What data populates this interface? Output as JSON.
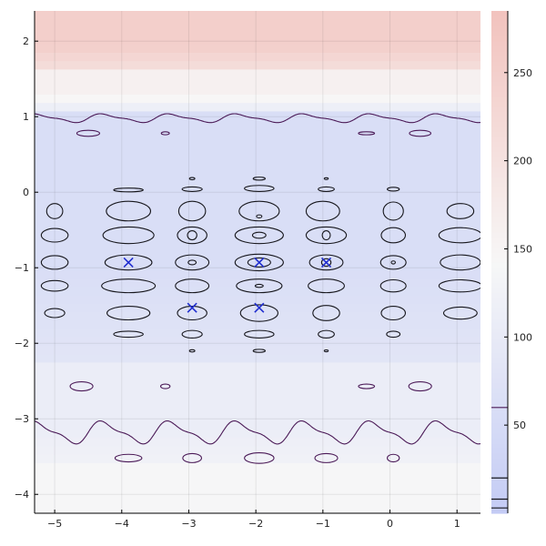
{
  "chart_data": {
    "type": "heatmap",
    "title": "",
    "xlabel": "",
    "ylabel": "",
    "xlim": [
      -5.3,
      1.35
    ],
    "ylim": [
      -4.25,
      2.4
    ],
    "x_ticks": [
      -5,
      -4,
      -3,
      -2,
      -1,
      0,
      1
    ],
    "y_ticks": [
      2,
      1,
      0,
      -1,
      -2,
      -3,
      -4
    ],
    "x_tick_labels": [
      "−5",
      "−4",
      "−3",
      "−2",
      "−1",
      "0",
      "1"
    ],
    "y_tick_labels": [
      "2",
      "1",
      "0",
      "−1",
      "−2",
      "−3",
      "−4"
    ],
    "grid": true,
    "colorbar": {
      "min": 0,
      "max": 285,
      "ticks": [
        50,
        100,
        150,
        200,
        250
      ],
      "tick_labels": [
        "50",
        "100",
        "150",
        "200",
        "250"
      ],
      "colors": {
        "low": "#c3cbf5",
        "mid": "#f7f7f7",
        "high": "#f2c2bd"
      },
      "contour_level_marks": [
        3,
        8,
        20,
        60
      ]
    },
    "heatmap_bands": [
      {
        "y_from": 2.4,
        "y_to": 1.6,
        "value": 250
      },
      {
        "y_from": 1.6,
        "y_to": 1.1,
        "value": 160
      },
      {
        "y_from": 1.1,
        "y_to": -2.3,
        "value": 60
      },
      {
        "y_from": -2.3,
        "y_to": -3.6,
        "value": 110
      },
      {
        "y_from": -3.6,
        "y_to": -4.25,
        "value": 140
      }
    ],
    "contour_colors": {
      "outer": "#4b1a57",
      "inner": "#16161c"
    },
    "contours": [
      {
        "x": -3.9,
        "y": 0.03,
        "rx": 0.22,
        "ry": 0.025,
        "level": 8
      },
      {
        "x": -2.95,
        "y": 0.18,
        "rx": 0.04,
        "ry": 0.015,
        "level": 3
      },
      {
        "x": -2.95,
        "y": 0.04,
        "rx": 0.15,
        "ry": 0.03,
        "level": 8
      },
      {
        "x": -1.95,
        "y": 0.18,
        "rx": 0.09,
        "ry": 0.02,
        "level": 3
      },
      {
        "x": -1.95,
        "y": 0.05,
        "rx": 0.22,
        "ry": 0.04,
        "level": 8
      },
      {
        "x": -0.95,
        "y": 0.18,
        "rx": 0.03,
        "ry": 0.012,
        "level": 3
      },
      {
        "x": -0.95,
        "y": 0.04,
        "rx": 0.12,
        "ry": 0.03,
        "level": 8
      },
      {
        "x": 0.05,
        "y": 0.04,
        "rx": 0.09,
        "ry": 0.025,
        "level": 8
      },
      {
        "x": -5.0,
        "y": -0.25,
        "rx": 0.12,
        "ry": 0.1,
        "level": 8
      },
      {
        "x": -3.9,
        "y": -0.25,
        "rx": 0.33,
        "ry": 0.13,
        "level": 8
      },
      {
        "x": -2.95,
        "y": -0.25,
        "rx": 0.2,
        "ry": 0.13,
        "level": 8
      },
      {
        "x": -1.95,
        "y": -0.25,
        "rx": 0.3,
        "ry": 0.13,
        "level": 8
      },
      {
        "x": -1.95,
        "y": -0.32,
        "rx": 0.04,
        "ry": 0.02,
        "level": 3
      },
      {
        "x": -1.0,
        "y": -0.25,
        "rx": 0.25,
        "ry": 0.13,
        "level": 8
      },
      {
        "x": 0.05,
        "y": -0.25,
        "rx": 0.15,
        "ry": 0.12,
        "level": 8
      },
      {
        "x": 1.05,
        "y": -0.25,
        "rx": 0.2,
        "ry": 0.1,
        "level": 8
      },
      {
        "x": -5.0,
        "y": -0.57,
        "rx": 0.2,
        "ry": 0.09,
        "level": 8
      },
      {
        "x": -3.9,
        "y": -0.57,
        "rx": 0.38,
        "ry": 0.11,
        "level": 8
      },
      {
        "x": -2.95,
        "y": -0.57,
        "rx": 0.22,
        "ry": 0.11,
        "level": 8
      },
      {
        "x": -2.95,
        "y": -0.57,
        "rx": 0.07,
        "ry": 0.06,
        "level": 3
      },
      {
        "x": -1.95,
        "y": -0.57,
        "rx": 0.36,
        "ry": 0.11,
        "level": 8
      },
      {
        "x": -1.95,
        "y": -0.57,
        "rx": 0.1,
        "ry": 0.04,
        "level": 3
      },
      {
        "x": -0.95,
        "y": -0.57,
        "rx": 0.3,
        "ry": 0.11,
        "level": 8
      },
      {
        "x": -0.95,
        "y": -0.57,
        "rx": 0.06,
        "ry": 0.06,
        "level": 3
      },
      {
        "x": 0.05,
        "y": -0.57,
        "rx": 0.18,
        "ry": 0.1,
        "level": 8
      },
      {
        "x": 1.05,
        "y": -0.57,
        "rx": 0.32,
        "ry": 0.1,
        "level": 8
      },
      {
        "x": -5.0,
        "y": -0.93,
        "rx": 0.2,
        "ry": 0.09,
        "level": 8
      },
      {
        "x": -3.9,
        "y": -0.93,
        "rx": 0.35,
        "ry": 0.1,
        "level": 8
      },
      {
        "x": -2.95,
        "y": -0.93,
        "rx": 0.25,
        "ry": 0.1,
        "level": 8
      },
      {
        "x": -2.95,
        "y": -0.93,
        "rx": 0.06,
        "ry": 0.03,
        "level": 3
      },
      {
        "x": -1.95,
        "y": -0.93,
        "rx": 0.36,
        "ry": 0.11,
        "level": 8
      },
      {
        "x": -1.95,
        "y": -0.93,
        "rx": 0.17,
        "ry": 0.06,
        "level": 3
      },
      {
        "x": -0.95,
        "y": -0.93,
        "rx": 0.25,
        "ry": 0.1,
        "level": 8
      },
      {
        "x": -0.95,
        "y": -0.93,
        "rx": 0.07,
        "ry": 0.05,
        "level": 3
      },
      {
        "x": 0.05,
        "y": -0.93,
        "rx": 0.19,
        "ry": 0.09,
        "level": 8
      },
      {
        "x": 0.05,
        "y": -0.93,
        "rx": 0.03,
        "ry": 0.02,
        "level": 3
      },
      {
        "x": 1.05,
        "y": -0.93,
        "rx": 0.3,
        "ry": 0.1,
        "level": 8
      },
      {
        "x": -5.0,
        "y": -1.24,
        "rx": 0.2,
        "ry": 0.07,
        "level": 8
      },
      {
        "x": -3.9,
        "y": -1.24,
        "rx": 0.4,
        "ry": 0.09,
        "level": 8
      },
      {
        "x": -2.95,
        "y": -1.24,
        "rx": 0.25,
        "ry": 0.09,
        "level": 8
      },
      {
        "x": -1.95,
        "y": -1.24,
        "rx": 0.34,
        "ry": 0.09,
        "level": 8
      },
      {
        "x": -1.95,
        "y": -1.24,
        "rx": 0.06,
        "ry": 0.02,
        "level": 3
      },
      {
        "x": -0.95,
        "y": -1.24,
        "rx": 0.27,
        "ry": 0.09,
        "level": 8
      },
      {
        "x": 0.05,
        "y": -1.24,
        "rx": 0.19,
        "ry": 0.08,
        "level": 8
      },
      {
        "x": 1.05,
        "y": -1.24,
        "rx": 0.32,
        "ry": 0.08,
        "level": 8
      },
      {
        "x": -5.0,
        "y": -1.6,
        "rx": 0.15,
        "ry": 0.06,
        "level": 8
      },
      {
        "x": -3.9,
        "y": -1.6,
        "rx": 0.32,
        "ry": 0.09,
        "level": 8
      },
      {
        "x": -2.95,
        "y": -1.6,
        "rx": 0.22,
        "ry": 0.09,
        "level": 8
      },
      {
        "x": -1.95,
        "y": -1.6,
        "rx": 0.28,
        "ry": 0.11,
        "level": 8
      },
      {
        "x": -0.95,
        "y": -1.6,
        "rx": 0.2,
        "ry": 0.1,
        "level": 8
      },
      {
        "x": 0.05,
        "y": -1.6,
        "rx": 0.18,
        "ry": 0.09,
        "level": 8
      },
      {
        "x": 1.05,
        "y": -1.6,
        "rx": 0.25,
        "ry": 0.08,
        "level": 8
      },
      {
        "x": -3.9,
        "y": -1.88,
        "rx": 0.22,
        "ry": 0.04,
        "level": 8
      },
      {
        "x": -2.95,
        "y": -1.88,
        "rx": 0.15,
        "ry": 0.05,
        "level": 8
      },
      {
        "x": -1.95,
        "y": -1.88,
        "rx": 0.22,
        "ry": 0.05,
        "level": 8
      },
      {
        "x": -0.95,
        "y": -1.88,
        "rx": 0.12,
        "ry": 0.05,
        "level": 8
      },
      {
        "x": 0.05,
        "y": -1.88,
        "rx": 0.1,
        "ry": 0.04,
        "level": 8
      },
      {
        "x": -2.95,
        "y": -2.1,
        "rx": 0.04,
        "ry": 0.015,
        "level": 3
      },
      {
        "x": -1.95,
        "y": -2.1,
        "rx": 0.09,
        "ry": 0.02,
        "level": 3
      },
      {
        "x": -0.95,
        "y": -2.1,
        "rx": 0.03,
        "ry": 0.012,
        "level": 3
      },
      {
        "x": -4.5,
        "y": 0.78,
        "rx": 0.17,
        "ry": 0.04,
        "level": 60
      },
      {
        "x": -3.35,
        "y": 0.78,
        "rx": 0.06,
        "ry": 0.02,
        "level": 60
      },
      {
        "x": -0.35,
        "y": 0.78,
        "rx": 0.12,
        "ry": 0.02,
        "level": 60
      },
      {
        "x": 0.45,
        "y": 0.78,
        "rx": 0.16,
        "ry": 0.04,
        "level": 60
      },
      {
        "x": -4.6,
        "y": -2.57,
        "rx": 0.17,
        "ry": 0.06,
        "level": 60
      },
      {
        "x": -3.35,
        "y": -2.57,
        "rx": 0.07,
        "ry": 0.03,
        "level": 60
      },
      {
        "x": -0.35,
        "y": -2.57,
        "rx": 0.12,
        "ry": 0.03,
        "level": 60
      },
      {
        "x": 0.45,
        "y": -2.57,
        "rx": 0.17,
        "ry": 0.06,
        "level": 60
      },
      {
        "x": -3.9,
        "y": -3.52,
        "rx": 0.2,
        "ry": 0.05,
        "level": 60
      },
      {
        "x": -2.95,
        "y": -3.52,
        "rx": 0.14,
        "ry": 0.06,
        "level": 60
      },
      {
        "x": -1.95,
        "y": -3.52,
        "rx": 0.22,
        "ry": 0.07,
        "level": 60
      },
      {
        "x": -0.95,
        "y": -3.52,
        "rx": 0.17,
        "ry": 0.06,
        "level": 60
      },
      {
        "x": 0.05,
        "y": -3.52,
        "rx": 0.09,
        "ry": 0.05,
        "level": 60
      }
    ],
    "wavy_contours": [
      {
        "y": 0.98,
        "amplitude": 0.05,
        "period": 1.0,
        "phase": 0.5,
        "level": 60
      },
      {
        "y": -3.18,
        "amplitude": 0.13,
        "period": 1.0,
        "phase": 0.5,
        "level": 60
      }
    ],
    "markers": [
      {
        "x": -3.9,
        "y": -0.93
      },
      {
        "x": -1.95,
        "y": -0.93
      },
      {
        "x": -0.95,
        "y": -0.93
      },
      {
        "x": -2.95,
        "y": -1.53
      },
      {
        "x": -1.95,
        "y": -1.53
      }
    ],
    "marker_style": {
      "shape": "x",
      "color": "#1f2dcf"
    }
  }
}
